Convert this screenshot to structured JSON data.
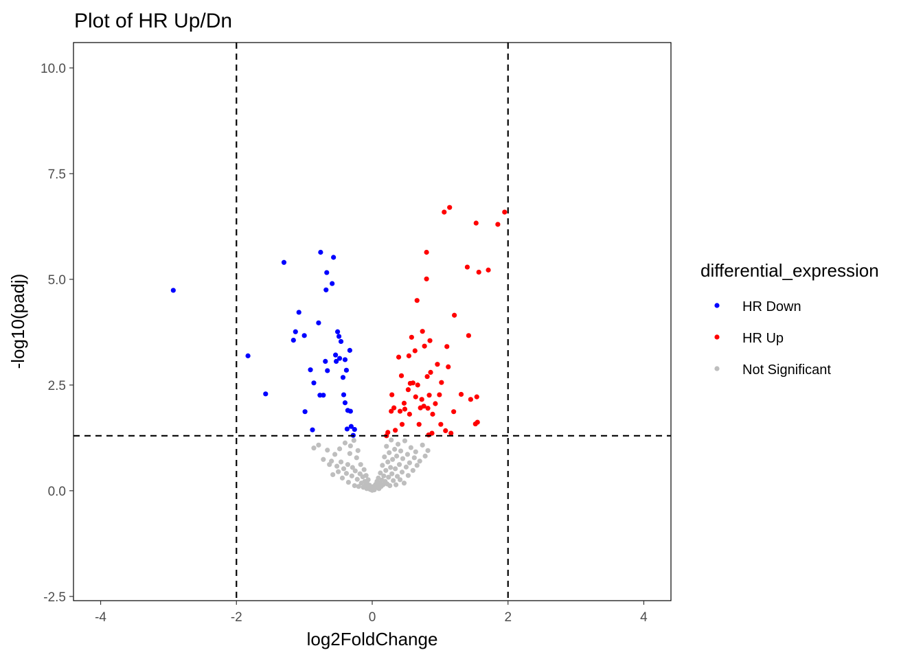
{
  "chart_data": {
    "type": "scatter",
    "title": "Plot of HR Up/Dn",
    "xlabel": "log2FoldChange",
    "ylabel": "-log10(padj)",
    "xlim": [
      -4.4,
      4.4
    ],
    "ylim": [
      -2.6,
      10.6
    ],
    "xticks": [
      -4,
      -2,
      0,
      2,
      4
    ],
    "yticks": [
      -2.5,
      0.0,
      2.5,
      5.0,
      7.5,
      10.0
    ],
    "xtick_labels": [
      "-4",
      "-2",
      "0",
      "2",
      "4"
    ],
    "ytick_labels": [
      "-2.5",
      "0.0",
      "2.5",
      "5.0",
      "7.5",
      "10.0"
    ],
    "grid": false,
    "threshold_lines": {
      "x": [
        -2,
        2
      ],
      "y": [
        1.3
      ]
    },
    "legend": {
      "title": "differential_expression",
      "placement": "right",
      "entries": [
        "HR Down",
        "HR Up",
        "Not Significant"
      ]
    },
    "colors": {
      "HR Down": "#0000ff",
      "HR Up": "#ff0000",
      "Not Significant": "#bebebe"
    },
    "series": [
      {
        "name": "HR Down",
        "points": [
          [
            -2.93,
            4.74
          ],
          [
            -1.83,
            3.19
          ],
          [
            -1.57,
            2.29
          ],
          [
            -1.3,
            5.4
          ],
          [
            -1.16,
            3.56
          ],
          [
            -1.13,
            3.76
          ],
          [
            -1.08,
            4.22
          ],
          [
            -1.0,
            3.67
          ],
          [
            -0.99,
            1.87
          ],
          [
            -0.91,
            2.86
          ],
          [
            -0.88,
            1.44
          ],
          [
            -0.86,
            2.55
          ],
          [
            -0.79,
            3.97
          ],
          [
            -0.77,
            2.26
          ],
          [
            -0.76,
            5.64
          ],
          [
            -0.72,
            2.26
          ],
          [
            -0.69,
            3.06
          ],
          [
            -0.68,
            4.75
          ],
          [
            -0.67,
            5.16
          ],
          [
            -0.66,
            2.84
          ],
          [
            -0.59,
            4.9
          ],
          [
            -0.57,
            5.52
          ],
          [
            -0.54,
            3.21
          ],
          [
            -0.53,
            3.06
          ],
          [
            -0.51,
            3.76
          ],
          [
            -0.49,
            3.65
          ],
          [
            -0.48,
            3.13
          ],
          [
            -0.46,
            3.53
          ],
          [
            -0.43,
            2.68
          ],
          [
            -0.42,
            2.27
          ],
          [
            -0.4,
            3.1
          ],
          [
            -0.4,
            2.08
          ],
          [
            -0.38,
            2.85
          ],
          [
            -0.37,
            1.46
          ],
          [
            -0.36,
            1.9
          ],
          [
            -0.33,
            3.32
          ],
          [
            -0.32,
            1.88
          ],
          [
            -0.31,
            1.52
          ],
          [
            -0.28,
            1.31
          ],
          [
            -0.26,
            1.45
          ]
        ]
      },
      {
        "name": "HR Up",
        "points": [
          [
            0.21,
            1.3
          ],
          [
            0.23,
            1.38
          ],
          [
            0.28,
            1.88
          ],
          [
            0.29,
            2.27
          ],
          [
            0.32,
            1.96
          ],
          [
            0.34,
            1.43
          ],
          [
            0.39,
            3.16
          ],
          [
            0.41,
            1.88
          ],
          [
            0.43,
            2.72
          ],
          [
            0.44,
            1.57
          ],
          [
            0.47,
            2.07
          ],
          [
            0.48,
            1.93
          ],
          [
            0.53,
            2.39
          ],
          [
            0.54,
            3.19
          ],
          [
            0.55,
            1.81
          ],
          [
            0.56,
            2.54
          ],
          [
            0.58,
            3.63
          ],
          [
            0.6,
            2.55
          ],
          [
            0.63,
            3.31
          ],
          [
            0.64,
            2.22
          ],
          [
            0.66,
            4.5
          ],
          [
            0.67,
            2.5
          ],
          [
            0.69,
            1.57
          ],
          [
            0.71,
            1.96
          ],
          [
            0.73,
            2.16
          ],
          [
            0.74,
            3.77
          ],
          [
            0.76,
            2.0
          ],
          [
            0.77,
            3.42
          ],
          [
            0.8,
            5.01
          ],
          [
            0.8,
            5.64
          ],
          [
            0.81,
            2.7
          ],
          [
            0.82,
            1.95
          ],
          [
            0.83,
            1.32
          ],
          [
            0.84,
            2.26
          ],
          [
            0.85,
            3.55
          ],
          [
            0.86,
            2.8
          ],
          [
            0.88,
            1.36
          ],
          [
            0.89,
            1.81
          ],
          [
            0.93,
            2.06
          ],
          [
            0.96,
            2.99
          ],
          [
            0.99,
            2.27
          ],
          [
            1.01,
            1.57
          ],
          [
            1.02,
            2.56
          ],
          [
            1.06,
            6.59
          ],
          [
            1.08,
            1.42
          ],
          [
            1.1,
            3.41
          ],
          [
            1.12,
            2.93
          ],
          [
            1.14,
            6.7
          ],
          [
            1.16,
            1.36
          ],
          [
            1.2,
            1.87
          ],
          [
            1.21,
            4.15
          ],
          [
            1.31,
            2.28
          ],
          [
            1.4,
            5.29
          ],
          [
            1.42,
            3.67
          ],
          [
            1.45,
            2.16
          ],
          [
            1.52,
            1.58
          ],
          [
            1.53,
            6.33
          ],
          [
            1.54,
            2.22
          ],
          [
            1.55,
            1.62
          ],
          [
            1.57,
            5.17
          ],
          [
            1.71,
            5.22
          ],
          [
            1.85,
            6.3
          ],
          [
            1.95,
            6.59
          ]
        ]
      },
      {
        "name": "Not Significant",
        "points": [
          [
            -0.86,
            1.01
          ],
          [
            -0.79,
            1.08
          ],
          [
            -0.72,
            0.74
          ],
          [
            -0.66,
            0.96
          ],
          [
            -0.63,
            0.62
          ],
          [
            -0.6,
            0.7
          ],
          [
            -0.58,
            0.38
          ],
          [
            -0.55,
            0.86
          ],
          [
            -0.52,
            0.58
          ],
          [
            -0.5,
            0.45
          ],
          [
            -0.48,
            0.99
          ],
          [
            -0.46,
            0.68
          ],
          [
            -0.44,
            0.3
          ],
          [
            -0.42,
            0.52
          ],
          [
            -0.4,
            1.13
          ],
          [
            -0.38,
            0.41
          ],
          [
            -0.36,
            0.62
          ],
          [
            -0.35,
            0.2
          ],
          [
            -0.33,
            0.88
          ],
          [
            -0.32,
            1.06
          ],
          [
            -0.3,
            0.35
          ],
          [
            -0.29,
            0.55
          ],
          [
            -0.27,
            1.19
          ],
          [
            -0.26,
            0.12
          ],
          [
            -0.25,
            0.47
          ],
          [
            -0.23,
            0.78
          ],
          [
            -0.22,
            0.27
          ],
          [
            -0.21,
            0.95
          ],
          [
            -0.2,
            0.1
          ],
          [
            -0.18,
            0.4
          ],
          [
            -0.17,
            0.62
          ],
          [
            -0.16,
            0.18
          ],
          [
            -0.14,
            0.33
          ],
          [
            -0.13,
            0.08
          ],
          [
            -0.12,
            0.5
          ],
          [
            -0.11,
            0.22
          ],
          [
            -0.1,
            0.12
          ],
          [
            -0.09,
            0.36
          ],
          [
            -0.08,
            0.05
          ],
          [
            -0.07,
            0.16
          ],
          [
            -0.06,
            0.26
          ],
          [
            -0.05,
            0.07
          ],
          [
            -0.04,
            0.13
          ],
          [
            -0.03,
            0.03
          ],
          [
            -0.02,
            0.08
          ],
          [
            -0.01,
            0.02
          ],
          [
            0.0,
            0.01
          ],
          [
            0.01,
            0.04
          ],
          [
            0.02,
            0.1
          ],
          [
            0.03,
            0.02
          ],
          [
            0.04,
            0.06
          ],
          [
            0.05,
            0.15
          ],
          [
            0.06,
            0.08
          ],
          [
            0.07,
            0.22
          ],
          [
            0.08,
            0.12
          ],
          [
            0.09,
            0.3
          ],
          [
            0.1,
            0.05
          ],
          [
            0.11,
            0.18
          ],
          [
            0.12,
            0.42
          ],
          [
            0.13,
            0.1
          ],
          [
            0.14,
            0.25
          ],
          [
            0.15,
            0.6
          ],
          [
            0.16,
            0.14
          ],
          [
            0.17,
            0.35
          ],
          [
            0.18,
            0.8
          ],
          [
            0.19,
            0.22
          ],
          [
            0.2,
            0.48
          ],
          [
            0.21,
            1.05
          ],
          [
            0.22,
            0.16
          ],
          [
            0.23,
            0.68
          ],
          [
            0.24,
            0.32
          ],
          [
            0.25,
            0.9
          ],
          [
            0.26,
            0.12
          ],
          [
            0.27,
            0.55
          ],
          [
            0.28,
            1.2
          ],
          [
            0.29,
            0.4
          ],
          [
            0.3,
            0.74
          ],
          [
            0.31,
            0.24
          ],
          [
            0.33,
            0.98
          ],
          [
            0.34,
            0.52
          ],
          [
            0.35,
            0.14
          ],
          [
            0.36,
            0.82
          ],
          [
            0.37,
            0.34
          ],
          [
            0.38,
            1.1
          ],
          [
            0.4,
            0.62
          ],
          [
            0.41,
            0.26
          ],
          [
            0.42,
            0.94
          ],
          [
            0.44,
            0.44
          ],
          [
            0.45,
            0.76
          ],
          [
            0.47,
            0.18
          ],
          [
            0.48,
            1.18
          ],
          [
            0.5,
            0.56
          ],
          [
            0.52,
            0.86
          ],
          [
            0.53,
            0.36
          ],
          [
            0.55,
            0.66
          ],
          [
            0.57,
            1.02
          ],
          [
            0.6,
            0.48
          ],
          [
            0.62,
            0.78
          ],
          [
            0.64,
            0.92
          ],
          [
            0.66,
            0.6
          ],
          [
            0.7,
            0.7
          ],
          [
            0.74,
            1.08
          ],
          [
            0.78,
            0.82
          ],
          [
            0.82,
            0.95
          ]
        ]
      }
    ]
  }
}
